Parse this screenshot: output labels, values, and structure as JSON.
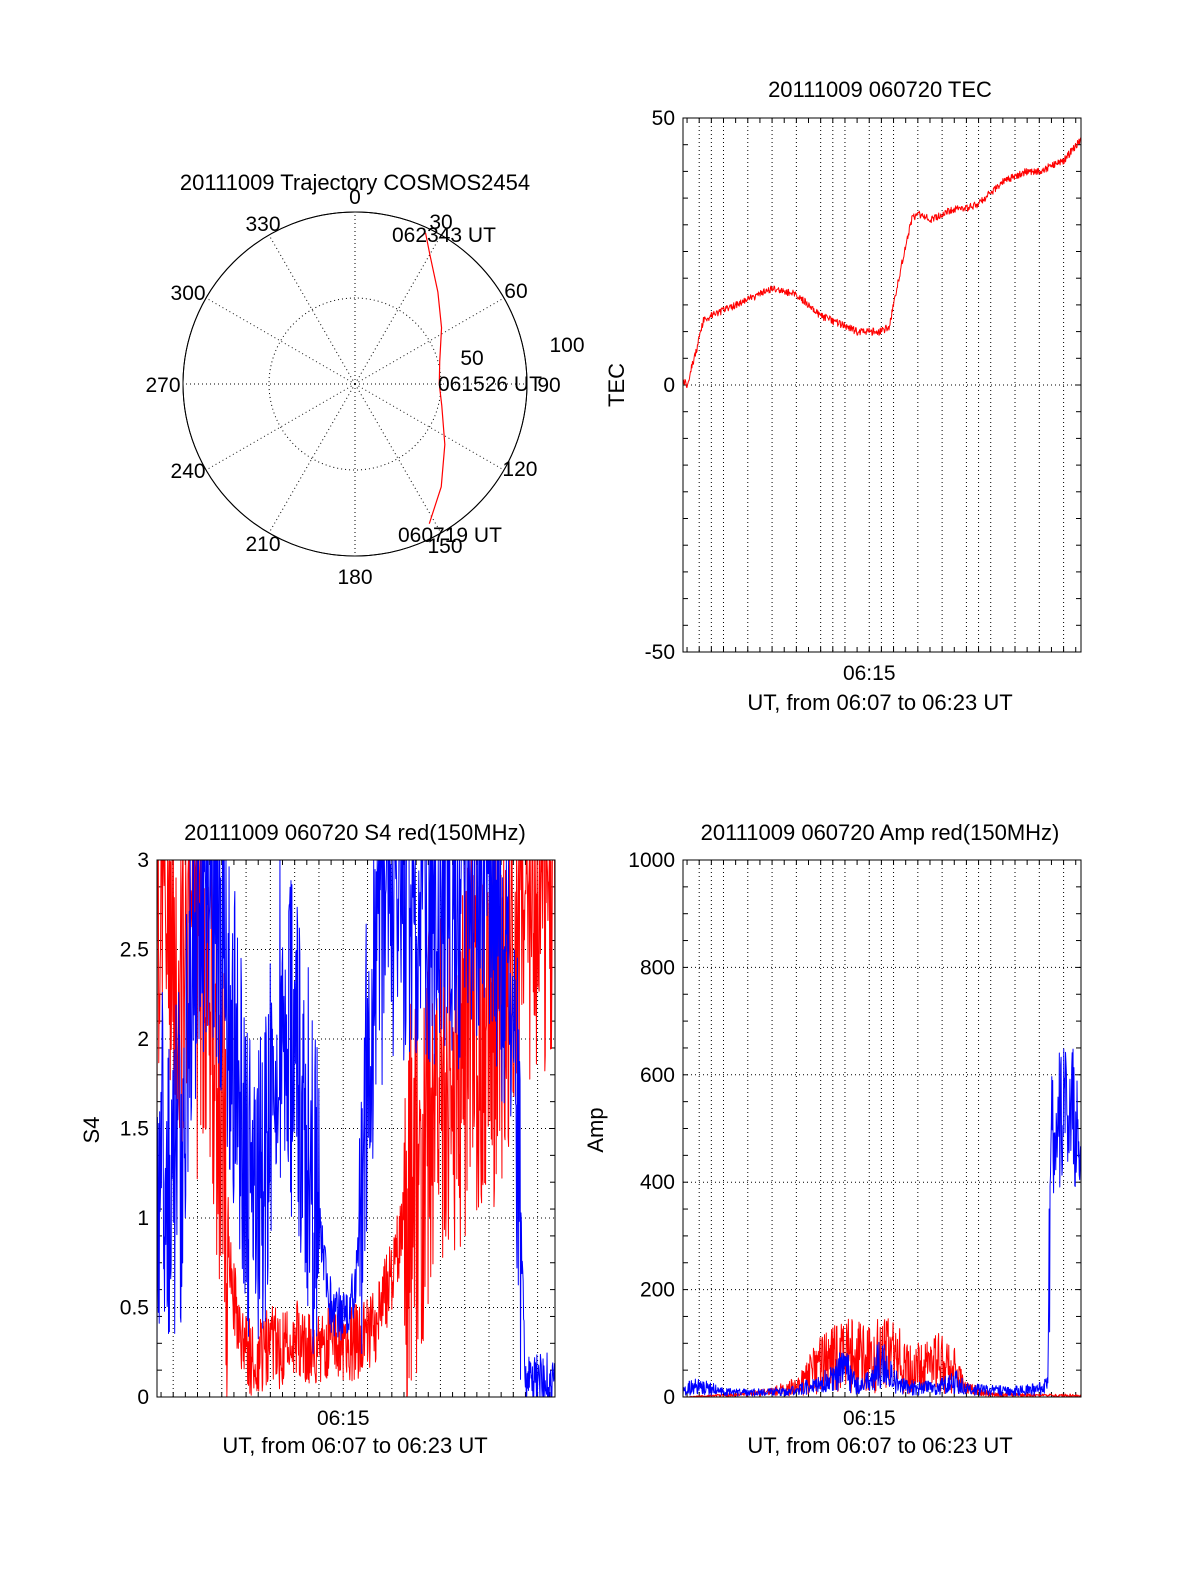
{
  "figure": {
    "background": "#ffffff",
    "axis_color": "#000000"
  },
  "chart_data": [
    {
      "id": "trajectory",
      "type": "polar",
      "title": "20111009 Trajectory COSMOS2454",
      "angle_labels": [
        "0",
        "30",
        "60",
        "90",
        "120",
        "150",
        "180",
        "210",
        "240",
        "270",
        "300",
        "330"
      ],
      "angle_degrees": [
        0,
        30,
        60,
        90,
        120,
        150,
        180,
        210,
        240,
        270,
        300,
        330
      ],
      "radial_max": 100,
      "radial_rings": [
        50,
        100
      ],
      "radial_labels": [
        "50",
        "100"
      ],
      "track_color": "#ff0000",
      "track": [
        {
          "az": 152,
          "zd": 92
        },
        {
          "az": 140,
          "zd": 78
        },
        {
          "az": 124,
          "zd": 63
        },
        {
          "az": 104,
          "zd": 52
        },
        {
          "az": 90,
          "zd": 49
        },
        {
          "az": 75,
          "zd": 51
        },
        {
          "az": 57,
          "zd": 60
        },
        {
          "az": 42,
          "zd": 72
        },
        {
          "az": 30,
          "zd": 87
        },
        {
          "az": 25,
          "zd": 97
        }
      ],
      "annotations": [
        {
          "text": "062343 UT",
          "az": 19,
          "zd": 90
        },
        {
          "text": "061526 UT",
          "az": 88,
          "zd": 72
        },
        {
          "text": "060719 UT",
          "az": 147,
          "zd": 98
        }
      ]
    },
    {
      "id": "tec",
      "type": "line",
      "title": "20111009 060720 TEC",
      "ylabel": "TEC",
      "xlabel": "UT, from 06:07 to 06:23 UT",
      "xlim": [
        "06:07:20",
        "06:23:43"
      ],
      "ylim": [
        -50,
        50
      ],
      "yticks": [
        "50",
        "0",
        "-50"
      ],
      "ytick_values": [
        50,
        0,
        -50
      ],
      "xticks": [
        "06:15"
      ],
      "xtick_values": [
        "06:15:00"
      ],
      "grid_x": [
        "06:08:00",
        "06:08:30",
        "06:09:00",
        "06:10:00",
        "06:11:00",
        "06:12:00",
        "06:13:00",
        "06:13:30",
        "06:14:00",
        "06:15:00",
        "06:15:30",
        "06:16:00",
        "06:17:00",
        "06:18:00",
        "06:19:00",
        "06:19:30",
        "06:20:00",
        "06:21:00",
        "06:22:00",
        "06:23:00"
      ],
      "grid_y": [
        0
      ],
      "series": [
        {
          "color": "#ff0000",
          "points": [
            [
              "06:07:20",
              1
            ],
            [
              "06:07:30",
              0
            ],
            [
              "06:07:40",
              3
            ],
            [
              "06:07:55",
              7
            ],
            [
              "06:08:10",
              12
            ],
            [
              "06:08:30",
              13
            ],
            [
              "06:09:00",
              14
            ],
            [
              "06:09:30",
              15
            ],
            [
              "06:10:00",
              16
            ],
            [
              "06:10:30",
              17
            ],
            [
              "06:11:00",
              18
            ],
            [
              "06:11:30",
              17.5
            ],
            [
              "06:12:00",
              17
            ],
            [
              "06:12:30",
              15
            ],
            [
              "06:13:00",
              13
            ],
            [
              "06:13:30",
              12
            ],
            [
              "06:14:00",
              11
            ],
            [
              "06:14:30",
              10
            ],
            [
              "06:15:00",
              10
            ],
            [
              "06:15:30",
              10
            ],
            [
              "06:15:50",
              11
            ],
            [
              "06:16:10",
              19
            ],
            [
              "06:16:30",
              26
            ],
            [
              "06:16:45",
              31
            ],
            [
              "06:17:00",
              32
            ],
            [
              "06:17:30",
              31
            ],
            [
              "06:18:00",
              32
            ],
            [
              "06:18:30",
              33
            ],
            [
              "06:19:00",
              33
            ],
            [
              "06:19:30",
              34
            ],
            [
              "06:20:00",
              36
            ],
            [
              "06:20:30",
              38
            ],
            [
              "06:21:00",
              39
            ],
            [
              "06:21:30",
              40
            ],
            [
              "06:22:00",
              40
            ],
            [
              "06:22:30",
              41
            ],
            [
              "06:23:00",
              42
            ],
            [
              "06:23:43",
              46
            ]
          ]
        }
      ]
    },
    {
      "id": "s4",
      "type": "line",
      "title": "20111009 060720 S4 red(150MHz)",
      "ylabel": "S4",
      "xlabel": "UT, from 06:07 to 06:23 UT",
      "xlim": [
        "06:07:20",
        "06:23:43"
      ],
      "ylim": [
        0,
        3
      ],
      "yticks": [
        "0",
        "0.5",
        "1",
        "1.5",
        "2",
        "2.5",
        "3"
      ],
      "ytick_values": [
        0,
        0.5,
        1,
        1.5,
        2,
        2.5,
        3
      ],
      "xticks": [
        "06:15"
      ],
      "xtick_values": [
        "06:15:00"
      ],
      "grid_x": [
        "06:08:00",
        "06:09:00",
        "06:10:00",
        "06:11:00",
        "06:12:00",
        "06:13:00",
        "06:14:00",
        "06:15:00",
        "06:16:00",
        "06:17:00",
        "06:18:00",
        "06:19:00",
        "06:20:00",
        "06:21:00",
        "06:22:00",
        "06:23:00"
      ],
      "grid_y": [
        0.5,
        1,
        1.5,
        2,
        2.5
      ],
      "series": [
        {
          "color": "#ff0000",
          "points": [
            [
              "06:07:20",
              2.6
            ],
            [
              "06:07:40",
              2.9
            ],
            [
              "06:08:00",
              2.7
            ],
            [
              "06:08:20",
              2.5
            ],
            [
              "06:08:40",
              2.8
            ],
            [
              "06:09:00",
              2.3
            ],
            [
              "06:09:20",
              2.5
            ],
            [
              "06:09:40",
              2.0
            ],
            [
              "06:10:00",
              1.5
            ],
            [
              "06:10:20",
              0.8
            ],
            [
              "06:10:40",
              0.35
            ],
            [
              "06:11:00",
              0.25
            ],
            [
              "06:11:30",
              0.2
            ],
            [
              "06:12:00",
              0.3
            ],
            [
              "06:12:30",
              0.25
            ],
            [
              "06:13:00",
              0.35
            ],
            [
              "06:13:30",
              0.3
            ],
            [
              "06:14:00",
              0.28
            ],
            [
              "06:14:30",
              0.35
            ],
            [
              "06:15:00",
              0.3
            ],
            [
              "06:15:30",
              0.3
            ],
            [
              "06:16:00",
              0.35
            ],
            [
              "06:16:30",
              0.45
            ],
            [
              "06:17:00",
              0.7
            ],
            [
              "06:17:30",
              1.0
            ],
            [
              "06:18:00",
              1.2
            ],
            [
              "06:18:30",
              1.5
            ],
            [
              "06:19:00",
              1.6
            ],
            [
              "06:19:30",
              1.8
            ],
            [
              "06:20:00",
              1.9
            ],
            [
              "06:20:30",
              2.1
            ],
            [
              "06:21:00",
              1.9
            ],
            [
              "06:21:30",
              2.3
            ],
            [
              "06:22:00",
              2.5
            ],
            [
              "06:22:30",
              2.8
            ],
            [
              "06:23:00",
              2.9
            ],
            [
              "06:23:43",
              2.9
            ]
          ]
        },
        {
          "color": "#0000ff",
          "points": [
            [
              "06:07:20",
              1.2
            ],
            [
              "06:07:40",
              1.3
            ],
            [
              "06:08:00",
              1.15
            ],
            [
              "06:08:20",
              1.4
            ],
            [
              "06:08:40",
              2.2
            ],
            [
              "06:09:00",
              2.8
            ],
            [
              "06:09:20",
              2.5
            ],
            [
              "06:09:40",
              2.9
            ],
            [
              "06:10:00",
              2.6
            ],
            [
              "06:10:20",
              2.2
            ],
            [
              "06:10:40",
              1.8
            ],
            [
              "06:11:00",
              1.3
            ],
            [
              "06:11:30",
              1.0
            ],
            [
              "06:12:00",
              1.6
            ],
            [
              "06:12:30",
              2.2
            ],
            [
              "06:13:00",
              1.9
            ],
            [
              "06:13:30",
              1.5
            ],
            [
              "06:14:00",
              1.0
            ],
            [
              "06:14:30",
              0.5
            ],
            [
              "06:15:00",
              0.45
            ],
            [
              "06:15:30",
              0.6
            ],
            [
              "06:16:00",
              1.8
            ],
            [
              "06:16:30",
              2.7
            ],
            [
              "06:17:00",
              2.9
            ],
            [
              "06:17:30",
              2.8
            ],
            [
              "06:18:00",
              2.9
            ],
            [
              "06:18:30",
              2.8
            ],
            [
              "06:19:00",
              2.9
            ],
            [
              "06:19:30",
              2.7
            ],
            [
              "06:20:00",
              2.9
            ],
            [
              "06:20:30",
              2.8
            ],
            [
              "06:21:00",
              2.9
            ],
            [
              "06:21:30",
              2.6
            ],
            [
              "06:22:00",
              2.4
            ],
            [
              "06:22:30",
              0.1
            ],
            [
              "06:23:00",
              0.1
            ],
            [
              "06:23:43",
              0.1
            ]
          ]
        }
      ]
    },
    {
      "id": "amp",
      "type": "line",
      "title": "20111009 060720 Amp red(150MHz)",
      "ylabel": "Amp",
      "xlabel": "UT, from 06:07 to 06:23 UT",
      "xlim": [
        "06:07:20",
        "06:23:43"
      ],
      "ylim": [
        0,
        1000
      ],
      "yticks": [
        "0",
        "200",
        "400",
        "600",
        "800",
        "1000"
      ],
      "ytick_values": [
        0,
        200,
        400,
        600,
        800,
        1000
      ],
      "xticks": [
        "06:15"
      ],
      "xtick_values": [
        "06:15:00"
      ],
      "grid_x": [
        "06:08:00",
        "06:08:30",
        "06:09:00",
        "06:10:00",
        "06:11:00",
        "06:12:00",
        "06:13:00",
        "06:13:30",
        "06:14:00",
        "06:15:00",
        "06:15:30",
        "06:16:00",
        "06:17:00",
        "06:18:00",
        "06:19:00",
        "06:19:30",
        "06:20:00",
        "06:21:00",
        "06:22:00",
        "06:23:00"
      ],
      "grid_y": [
        200,
        400,
        600,
        800
      ],
      "series": [
        {
          "color": "#ff0000",
          "points": [
            [
              "06:07:20",
              0
            ],
            [
              "06:10:00",
              5
            ],
            [
              "06:11:00",
              10
            ],
            [
              "06:12:00",
              20
            ],
            [
              "06:12:30",
              40
            ],
            [
              "06:13:00",
              60
            ],
            [
              "06:13:30",
              70
            ],
            [
              "06:14:00",
              80
            ],
            [
              "06:14:30",
              75
            ],
            [
              "06:15:00",
              70
            ],
            [
              "06:15:30",
              80
            ],
            [
              "06:16:00",
              75
            ],
            [
              "06:16:30",
              60
            ],
            [
              "06:17:00",
              55
            ],
            [
              "06:17:30",
              60
            ],
            [
              "06:18:00",
              65
            ],
            [
              "06:18:30",
              50
            ],
            [
              "06:19:00",
              15
            ],
            [
              "06:20:00",
              5
            ],
            [
              "06:22:00",
              3
            ],
            [
              "06:22:30",
              3
            ],
            [
              "06:23:43",
              3
            ]
          ]
        },
        {
          "color": "#0000ff",
          "points": [
            [
              "06:07:20",
              15
            ],
            [
              "06:08:00",
              20
            ],
            [
              "06:08:30",
              15
            ],
            [
              "06:09:00",
              10
            ],
            [
              "06:10:00",
              8
            ],
            [
              "06:11:00",
              10
            ],
            [
              "06:12:00",
              12
            ],
            [
              "06:12:30",
              20
            ],
            [
              "06:13:00",
              25
            ],
            [
              "06:13:30",
              35
            ],
            [
              "06:14:00",
              55
            ],
            [
              "06:14:30",
              20
            ],
            [
              "06:15:00",
              30
            ],
            [
              "06:15:30",
              70
            ],
            [
              "06:16:00",
              30
            ],
            [
              "06:16:30",
              20
            ],
            [
              "06:17:00",
              15
            ],
            [
              "06:18:00",
              20
            ],
            [
              "06:18:30",
              30
            ],
            [
              "06:19:00",
              15
            ],
            [
              "06:20:00",
              12
            ],
            [
              "06:21:00",
              12
            ],
            [
              "06:22:00",
              15
            ],
            [
              "06:22:20",
              20
            ],
            [
              "06:22:30",
              500
            ],
            [
              "06:23:00",
              520
            ],
            [
              "06:23:43",
              520
            ]
          ]
        }
      ]
    }
  ]
}
